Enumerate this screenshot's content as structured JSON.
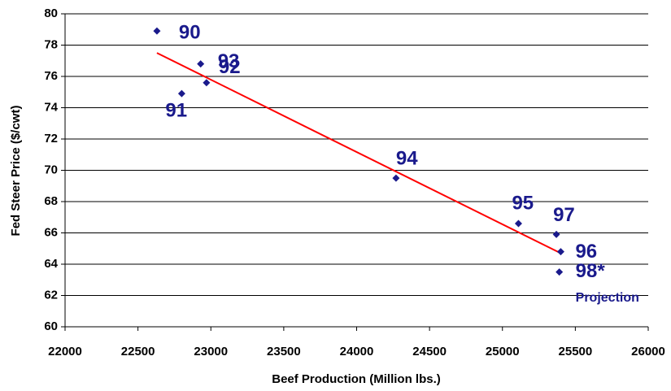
{
  "chart_data": {
    "type": "scatter",
    "x_label": "Beef Production (Million lbs.)",
    "y_label": "Fed Steer Price ($/cwt)",
    "xlim": [
      22000,
      26000
    ],
    "xticks": [
      22000,
      22500,
      23000,
      23500,
      24000,
      24500,
      25000,
      25500,
      26000
    ],
    "ylim": [
      60,
      80
    ],
    "yticks": [
      60,
      62,
      64,
      66,
      68,
      70,
      72,
      74,
      76,
      78,
      80
    ],
    "grid": true,
    "x": [
      22630,
      22930,
      22970,
      22800,
      24270,
      25110,
      25370,
      25400,
      25390
    ],
    "values": [
      78.9,
      76.8,
      75.6,
      74.9,
      69.5,
      66.6,
      65.9,
      64.8,
      63.5
    ],
    "labels": [
      "90",
      "93",
      "92",
      "91",
      "94",
      "95",
      "97",
      "96",
      "98*"
    ],
    "color": "#1a1a8c",
    "trendline": {
      "x": [
        22630,
        25400
      ],
      "values": [
        77.5,
        64.7
      ],
      "color": "#ff0000"
    },
    "annotation": "Projection"
  }
}
